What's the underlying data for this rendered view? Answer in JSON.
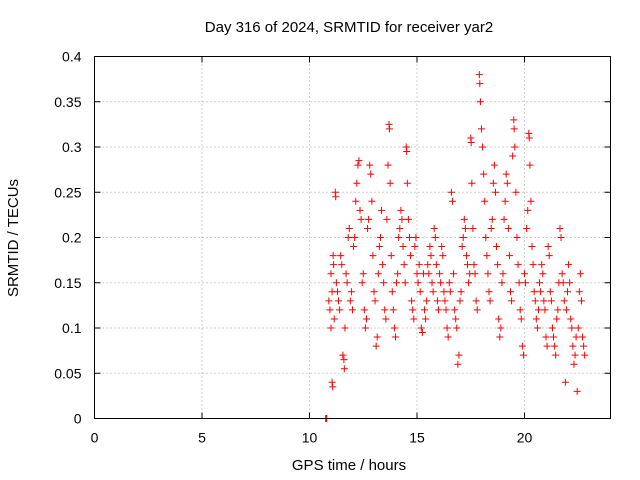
{
  "chart_data": {
    "type": "scatter",
    "title": "Day 316 of 2024, SRMTID for receiver yar2",
    "xlabel": "GPS time / hours",
    "ylabel": "SRMTID / TECUs",
    "xlim": [
      0,
      24
    ],
    "ylim": [
      0,
      0.4
    ],
    "xticks": [
      0,
      5,
      10,
      15,
      20
    ],
    "xtick_labels": [
      "0",
      "5",
      "10",
      "15",
      "20"
    ],
    "yticks": [
      0,
      0.05,
      0.1,
      0.15,
      0.2,
      0.25,
      0.3,
      0.35,
      0.4
    ],
    "ytick_labels": [
      "0",
      "0.05",
      "0.1",
      "0.15",
      "0.2",
      "0.25",
      "0.3",
      "0.35",
      "0.4"
    ],
    "grid": true,
    "marker": "+",
    "color": "#ff0000",
    "series": [
      {
        "name": "SRMTID",
        "points": [
          [
            10.75,
            0.0
          ],
          [
            10.78,
            0.0
          ],
          [
            10.8,
            0.0
          ],
          [
            10.9,
            0.13
          ],
          [
            10.95,
            0.12
          ],
          [
            11.0,
            0.1
          ],
          [
            11.0,
            0.16
          ],
          [
            11.05,
            0.14
          ],
          [
            11.05,
            0.04
          ],
          [
            11.08,
            0.035
          ],
          [
            11.1,
            0.18
          ],
          [
            11.12,
            0.17
          ],
          [
            11.15,
            0.11
          ],
          [
            11.2,
            0.25
          ],
          [
            11.22,
            0.245
          ],
          [
            11.25,
            0.15
          ],
          [
            11.3,
            0.14
          ],
          [
            11.35,
            0.13
          ],
          [
            11.4,
            0.12
          ],
          [
            11.45,
            0.18
          ],
          [
            11.5,
            0.17
          ],
          [
            11.55,
            0.07
          ],
          [
            11.6,
            0.065
          ],
          [
            11.62,
            0.055
          ],
          [
            11.65,
            0.1
          ],
          [
            11.7,
            0.16
          ],
          [
            11.75,
            0.15
          ],
          [
            11.8,
            0.2
          ],
          [
            11.85,
            0.21
          ],
          [
            11.9,
            0.13
          ],
          [
            11.95,
            0.14
          ],
          [
            12.0,
            0.12
          ],
          [
            12.05,
            0.19
          ],
          [
            12.1,
            0.2
          ],
          [
            12.15,
            0.24
          ],
          [
            12.2,
            0.26
          ],
          [
            12.25,
            0.28
          ],
          [
            12.3,
            0.285
          ],
          [
            12.35,
            0.23
          ],
          [
            12.4,
            0.22
          ],
          [
            12.45,
            0.15
          ],
          [
            12.5,
            0.16
          ],
          [
            12.55,
            0.12
          ],
          [
            12.6,
            0.1
          ],
          [
            12.65,
            0.11
          ],
          [
            12.7,
            0.21
          ],
          [
            12.75,
            0.22
          ],
          [
            12.8,
            0.28
          ],
          [
            12.85,
            0.27
          ],
          [
            12.9,
            0.24
          ],
          [
            12.95,
            0.18
          ],
          [
            13.0,
            0.14
          ],
          [
            13.05,
            0.13
          ],
          [
            13.1,
            0.08
          ],
          [
            13.15,
            0.09
          ],
          [
            13.2,
            0.16
          ],
          [
            13.25,
            0.19
          ],
          [
            13.3,
            0.2
          ],
          [
            13.35,
            0.23
          ],
          [
            13.4,
            0.17
          ],
          [
            13.45,
            0.15
          ],
          [
            13.5,
            0.12
          ],
          [
            13.55,
            0.11
          ],
          [
            13.6,
            0.22
          ],
          [
            13.65,
            0.28
          ],
          [
            13.7,
            0.325
          ],
          [
            13.72,
            0.32
          ],
          [
            13.75,
            0.26
          ],
          [
            13.8,
            0.18
          ],
          [
            13.85,
            0.14
          ],
          [
            13.9,
            0.12
          ],
          [
            13.95,
            0.1
          ],
          [
            14.0,
            0.09
          ],
          [
            14.05,
            0.15
          ],
          [
            14.1,
            0.16
          ],
          [
            14.15,
            0.2
          ],
          [
            14.2,
            0.21
          ],
          [
            14.25,
            0.23
          ],
          [
            14.3,
            0.22
          ],
          [
            14.35,
            0.19
          ],
          [
            14.4,
            0.17
          ],
          [
            14.45,
            0.15
          ],
          [
            14.5,
            0.3
          ],
          [
            14.52,
            0.295
          ],
          [
            14.55,
            0.26
          ],
          [
            14.6,
            0.22
          ],
          [
            14.65,
            0.2
          ],
          [
            14.7,
            0.18
          ],
          [
            14.75,
            0.13
          ],
          [
            14.8,
            0.12
          ],
          [
            14.85,
            0.11
          ],
          [
            14.9,
            0.19
          ],
          [
            14.95,
            0.2
          ],
          [
            15.0,
            0.16
          ],
          [
            15.05,
            0.15
          ],
          [
            15.1,
            0.17
          ],
          [
            15.15,
            0.14
          ],
          [
            15.2,
            0.1
          ],
          [
            15.25,
            0.095
          ],
          [
            15.3,
            0.16
          ],
          [
            15.35,
            0.12
          ],
          [
            15.4,
            0.11
          ],
          [
            15.45,
            0.13
          ],
          [
            15.5,
            0.17
          ],
          [
            15.55,
            0.16
          ],
          [
            15.6,
            0.19
          ],
          [
            15.65,
            0.18
          ],
          [
            15.7,
            0.15
          ],
          [
            15.75,
            0.14
          ],
          [
            15.8,
            0.21
          ],
          [
            15.85,
            0.2
          ],
          [
            15.9,
            0.17
          ],
          [
            15.95,
            0.13
          ],
          [
            16.0,
            0.12
          ],
          [
            16.05,
            0.16
          ],
          [
            16.1,
            0.15
          ],
          [
            16.15,
            0.19
          ],
          [
            16.2,
            0.18
          ],
          [
            16.25,
            0.14
          ],
          [
            16.3,
            0.13
          ],
          [
            16.35,
            0.12
          ],
          [
            16.4,
            0.1
          ],
          [
            16.45,
            0.09
          ],
          [
            16.5,
            0.15
          ],
          [
            16.55,
            0.14
          ],
          [
            16.6,
            0.25
          ],
          [
            16.65,
            0.24
          ],
          [
            16.7,
            0.16
          ],
          [
            16.75,
            0.12
          ],
          [
            16.8,
            0.11
          ],
          [
            16.85,
            0.1
          ],
          [
            16.9,
            0.06
          ],
          [
            16.95,
            0.07
          ],
          [
            17.0,
            0.13
          ],
          [
            17.05,
            0.14
          ],
          [
            17.1,
            0.19
          ],
          [
            17.15,
            0.2
          ],
          [
            17.2,
            0.22
          ],
          [
            17.25,
            0.21
          ],
          [
            17.3,
            0.18
          ],
          [
            17.35,
            0.17
          ],
          [
            17.4,
            0.15
          ],
          [
            17.45,
            0.16
          ],
          [
            17.5,
            0.31
          ],
          [
            17.52,
            0.305
          ],
          [
            17.55,
            0.26
          ],
          [
            17.6,
            0.21
          ],
          [
            17.65,
            0.17
          ],
          [
            17.7,
            0.16
          ],
          [
            17.75,
            0.13
          ],
          [
            17.8,
            0.12
          ],
          [
            17.9,
            0.38
          ],
          [
            17.92,
            0.37
          ],
          [
            17.95,
            0.35
          ],
          [
            18.0,
            0.32
          ],
          [
            18.05,
            0.3
          ],
          [
            18.1,
            0.27
          ],
          [
            18.15,
            0.24
          ],
          [
            18.2,
            0.2
          ],
          [
            18.25,
            0.18
          ],
          [
            18.3,
            0.16
          ],
          [
            18.35,
            0.14
          ],
          [
            18.4,
            0.13
          ],
          [
            18.45,
            0.21
          ],
          [
            18.5,
            0.22
          ],
          [
            18.55,
            0.26
          ],
          [
            18.6,
            0.28
          ],
          [
            18.65,
            0.25
          ],
          [
            18.7,
            0.19
          ],
          [
            18.75,
            0.17
          ],
          [
            18.8,
            0.11
          ],
          [
            18.85,
            0.09
          ],
          [
            18.9,
            0.1
          ],
          [
            18.95,
            0.15
          ],
          [
            19.0,
            0.16
          ],
          [
            19.05,
            0.22
          ],
          [
            19.1,
            0.24
          ],
          [
            19.15,
            0.27
          ],
          [
            19.2,
            0.26
          ],
          [
            19.25,
            0.21
          ],
          [
            19.3,
            0.18
          ],
          [
            19.35,
            0.14
          ],
          [
            19.4,
            0.13
          ],
          [
            19.45,
            0.29
          ],
          [
            19.5,
            0.33
          ],
          [
            19.52,
            0.32
          ],
          [
            19.55,
            0.3
          ],
          [
            19.6,
            0.25
          ],
          [
            19.65,
            0.2
          ],
          [
            19.7,
            0.17
          ],
          [
            19.75,
            0.15
          ],
          [
            19.8,
            0.12
          ],
          [
            19.85,
            0.11
          ],
          [
            19.9,
            0.08
          ],
          [
            19.95,
            0.07
          ],
          [
            20.0,
            0.16
          ],
          [
            20.05,
            0.15
          ],
          [
            20.1,
            0.21
          ],
          [
            20.15,
            0.23
          ],
          [
            20.2,
            0.315
          ],
          [
            20.22,
            0.31
          ],
          [
            20.25,
            0.28
          ],
          [
            20.3,
            0.24
          ],
          [
            20.35,
            0.19
          ],
          [
            20.4,
            0.17
          ],
          [
            20.45,
            0.14
          ],
          [
            20.5,
            0.13
          ],
          [
            20.55,
            0.11
          ],
          [
            20.6,
            0.1
          ],
          [
            20.65,
            0.12
          ],
          [
            20.7,
            0.15
          ],
          [
            20.75,
            0.14
          ],
          [
            20.8,
            0.17
          ],
          [
            20.85,
            0.16
          ],
          [
            20.9,
            0.13
          ],
          [
            20.95,
            0.12
          ],
          [
            21.0,
            0.09
          ],
          [
            21.05,
            0.08
          ],
          [
            21.1,
            0.19
          ],
          [
            21.15,
            0.18
          ],
          [
            21.2,
            0.14
          ],
          [
            21.25,
            0.13
          ],
          [
            21.3,
            0.1
          ],
          [
            21.35,
            0.09
          ],
          [
            21.4,
            0.08
          ],
          [
            21.45,
            0.07
          ],
          [
            21.5,
            0.11
          ],
          [
            21.55,
            0.12
          ],
          [
            21.6,
            0.15
          ],
          [
            21.65,
            0.21
          ],
          [
            21.7,
            0.2
          ],
          [
            21.75,
            0.16
          ],
          [
            21.8,
            0.15
          ],
          [
            21.85,
            0.13
          ],
          [
            21.9,
            0.04
          ],
          [
            21.95,
            0.12
          ],
          [
            22.0,
            0.14
          ],
          [
            22.05,
            0.17
          ],
          [
            22.1,
            0.15
          ],
          [
            22.15,
            0.11
          ],
          [
            22.2,
            0.1
          ],
          [
            22.25,
            0.08
          ],
          [
            22.3,
            0.06
          ],
          [
            22.35,
            0.07
          ],
          [
            22.4,
            0.09
          ],
          [
            22.45,
            0.03
          ],
          [
            22.5,
            0.1
          ],
          [
            22.55,
            0.14
          ],
          [
            22.6,
            0.16
          ],
          [
            22.65,
            0.13
          ],
          [
            22.7,
            0.09
          ],
          [
            22.75,
            0.08
          ],
          [
            22.8,
            0.07
          ]
        ]
      }
    ]
  }
}
